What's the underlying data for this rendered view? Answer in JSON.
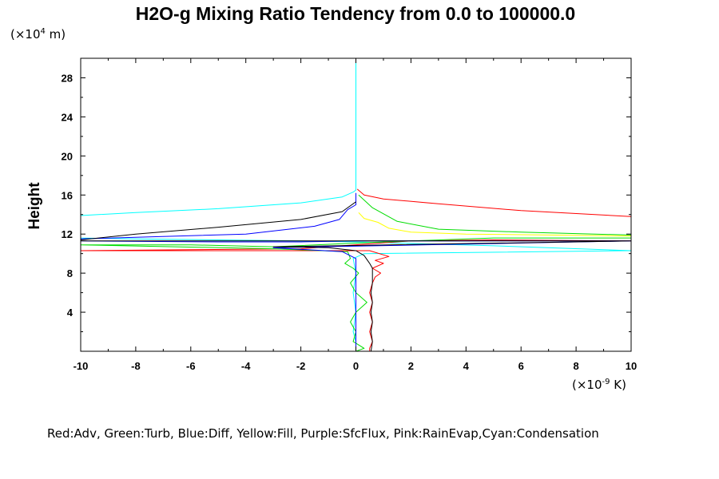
{
  "chart_data": {
    "type": "line",
    "title": "H2O-g Mixing Ratio Tendency from 0.0 to 100000.0",
    "ylabel": "Height",
    "xlabel": "",
    "x_unit_prefix": "(×10",
    "x_unit_exp": "-9",
    "x_unit_suffix": " K)",
    "y_unit_prefix": "(×10",
    "y_unit_exp": "4",
    "y_unit_suffix": " m)",
    "xlim": [
      -10,
      10
    ],
    "ylim": [
      0,
      30
    ],
    "x_ticks": [
      "-10",
      "-8",
      "-6",
      "-4",
      "-2",
      "0",
      "2",
      "4",
      "6",
      "8",
      "10"
    ],
    "y_ticks": [
      "4",
      "8",
      "12",
      "16",
      "20",
      "24",
      "28"
    ],
    "grid": false,
    "legend_text": "Red:Adv, Green:Turb, Blue:Diff, Yellow:Fill, Purple:SfcFlux, Pink:RainEvap,Cyan:Condensation",
    "series": [
      {
        "color": "#00ffff",
        "points": [
          [
            0,
            29.9
          ],
          [
            0,
            16.5
          ],
          [
            -0.1,
            16.3
          ],
          [
            -0.5,
            15.8
          ],
          [
            -2,
            15.2
          ],
          [
            -5,
            14.6
          ],
          [
            -8,
            14.2
          ],
          [
            -10,
            13.9
          ],
          [
            -10,
            11.6
          ],
          [
            -8,
            11.5
          ],
          [
            -5,
            11.4
          ],
          [
            -2,
            11.3
          ],
          [
            0,
            11.2
          ],
          [
            5,
            10.8
          ],
          [
            10,
            10.3
          ],
          [
            0.3,
            10.0
          ],
          [
            -0.1,
            9.5
          ],
          [
            0,
            8
          ],
          [
            -0.1,
            6
          ],
          [
            0,
            4
          ],
          [
            -0.1,
            2
          ],
          [
            0,
            1
          ],
          [
            0,
            0
          ]
        ]
      },
      {
        "color": "#ff0000",
        "points": [
          [
            0.05,
            16.6
          ],
          [
            0.3,
            16
          ],
          [
            1,
            15.6
          ],
          [
            3,
            15.1
          ],
          [
            6,
            14.4
          ],
          [
            10,
            13.8
          ],
          [
            10,
            11.3
          ],
          [
            5,
            11.4
          ],
          [
            2,
            11.3
          ],
          [
            0.5,
            11.0
          ],
          [
            -2,
            10.5
          ],
          [
            -6,
            10.4
          ],
          [
            -10,
            10.3
          ],
          [
            0.5,
            10.3
          ],
          [
            1.2,
            9.7
          ],
          [
            0.7,
            9.3
          ],
          [
            1.0,
            9.0
          ],
          [
            0.6,
            8.5
          ],
          [
            0.9,
            8.0
          ],
          [
            0.7,
            7.6
          ],
          [
            0.6,
            7
          ],
          [
            0.5,
            6
          ],
          [
            0.6,
            5
          ],
          [
            0.5,
            4
          ],
          [
            0.6,
            3
          ],
          [
            0.5,
            2
          ],
          [
            0.6,
            1
          ],
          [
            0.5,
            0.3
          ],
          [
            0.5,
            0
          ]
        ]
      },
      {
        "color": "#00dd00",
        "points": [
          [
            0.1,
            16
          ],
          [
            0.6,
            14.7
          ],
          [
            1.5,
            13.3
          ],
          [
            3,
            12.5
          ],
          [
            6,
            12.2
          ],
          [
            10,
            11.9
          ],
          [
            10,
            11.6
          ],
          [
            5,
            11.6
          ],
          [
            1,
            11.2
          ],
          [
            -3,
            10.7
          ],
          [
            -6,
            10.9
          ],
          [
            -10,
            10.9
          ],
          [
            -3,
            10.5
          ],
          [
            -0.3,
            10.2
          ],
          [
            -0.2,
            9.5
          ],
          [
            -0.4,
            9
          ],
          [
            -0.1,
            8.5
          ],
          [
            0.1,
            8
          ],
          [
            -0.2,
            7
          ],
          [
            0.0,
            6
          ],
          [
            0.4,
            5
          ],
          [
            0.0,
            4
          ],
          [
            -0.2,
            3
          ],
          [
            0.0,
            2
          ],
          [
            -0.1,
            1
          ],
          [
            0.3,
            0.3
          ],
          [
            0,
            0
          ]
        ]
      },
      {
        "color": "#0000ff",
        "points": [
          [
            0,
            16.2
          ],
          [
            0,
            15
          ],
          [
            -0.3,
            14.5
          ],
          [
            -0.6,
            13.5
          ],
          [
            -1.5,
            12.8
          ],
          [
            -4,
            12.0
          ],
          [
            -10,
            11.5
          ],
          [
            -10,
            11.3
          ],
          [
            -5,
            11.2
          ],
          [
            -2,
            11.2
          ],
          [
            0,
            11.3
          ],
          [
            5,
            11.3
          ],
          [
            10,
            11.3
          ],
          [
            -3,
            10.6
          ],
          [
            -0.5,
            10.2
          ],
          [
            0,
            9.5
          ],
          [
            0,
            0
          ]
        ]
      },
      {
        "color": "#ffff00",
        "points": [
          [
            0.1,
            14.2
          ],
          [
            0.3,
            13.6
          ],
          [
            0.8,
            13.2
          ],
          [
            1.2,
            12.6
          ],
          [
            2,
            12.2
          ],
          [
            4,
            12.0
          ],
          [
            7,
            11.9
          ],
          [
            10,
            11.8
          ]
        ]
      },
      {
        "color": "#000000",
        "points": [
          [
            0,
            15.3
          ],
          [
            -0.5,
            14.3
          ],
          [
            -2,
            13.5
          ],
          [
            -5,
            12.7
          ],
          [
            -8,
            12.0
          ],
          [
            -10,
            11.4
          ],
          [
            -10,
            11.3
          ],
          [
            -5,
            11.3
          ],
          [
            0,
            11.3
          ],
          [
            5,
            11.3
          ],
          [
            10,
            11.3
          ],
          [
            -3,
            10.7
          ],
          [
            -1,
            10.6
          ],
          [
            0,
            10.3
          ],
          [
            0.3,
            9.8
          ],
          [
            0.5,
            9.0
          ],
          [
            0.6,
            8.5
          ],
          [
            0.6,
            7
          ],
          [
            0.55,
            6
          ],
          [
            0.6,
            5
          ],
          [
            0.55,
            4
          ],
          [
            0.6,
            3
          ],
          [
            0.55,
            2
          ],
          [
            0.6,
            1
          ],
          [
            0.55,
            0
          ]
        ]
      }
    ]
  }
}
